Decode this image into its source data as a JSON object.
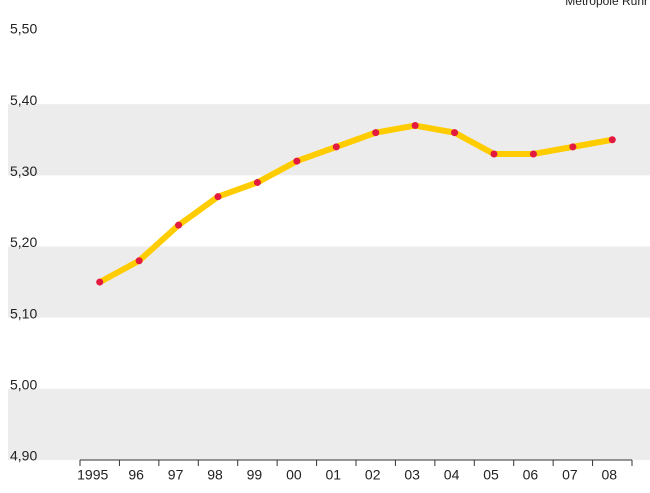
{
  "chart_data": {
    "type": "line",
    "note_text": "Metropole Ruhr",
    "categories": [
      "1995",
      "96",
      "97",
      "98",
      "99",
      "00",
      "01",
      "02",
      "03",
      "04",
      "05",
      "06",
      "07",
      "08"
    ],
    "series": [
      {
        "name": "Metropole Ruhr",
        "color": "#ffcc00",
        "marker_color": "#e3193f",
        "values": [
          5.15,
          5.18,
          5.23,
          5.27,
          5.29,
          5.32,
          5.34,
          5.36,
          5.37,
          5.36,
          5.33,
          5.33,
          5.34,
          5.35
        ]
      }
    ],
    "ylim": [
      4.9,
      5.5
    ],
    "yticks": [
      {
        "value": 4.9,
        "label": "4,90"
      },
      {
        "value": 5.0,
        "label": "5,00"
      },
      {
        "value": 5.1,
        "label": "5,10"
      },
      {
        "value": 5.2,
        "label": "5,20"
      },
      {
        "value": 5.3,
        "label": "5,30"
      },
      {
        "value": 5.4,
        "label": "5,40"
      },
      {
        "value": 5.5,
        "label": "5,50"
      }
    ],
    "grid": true
  }
}
